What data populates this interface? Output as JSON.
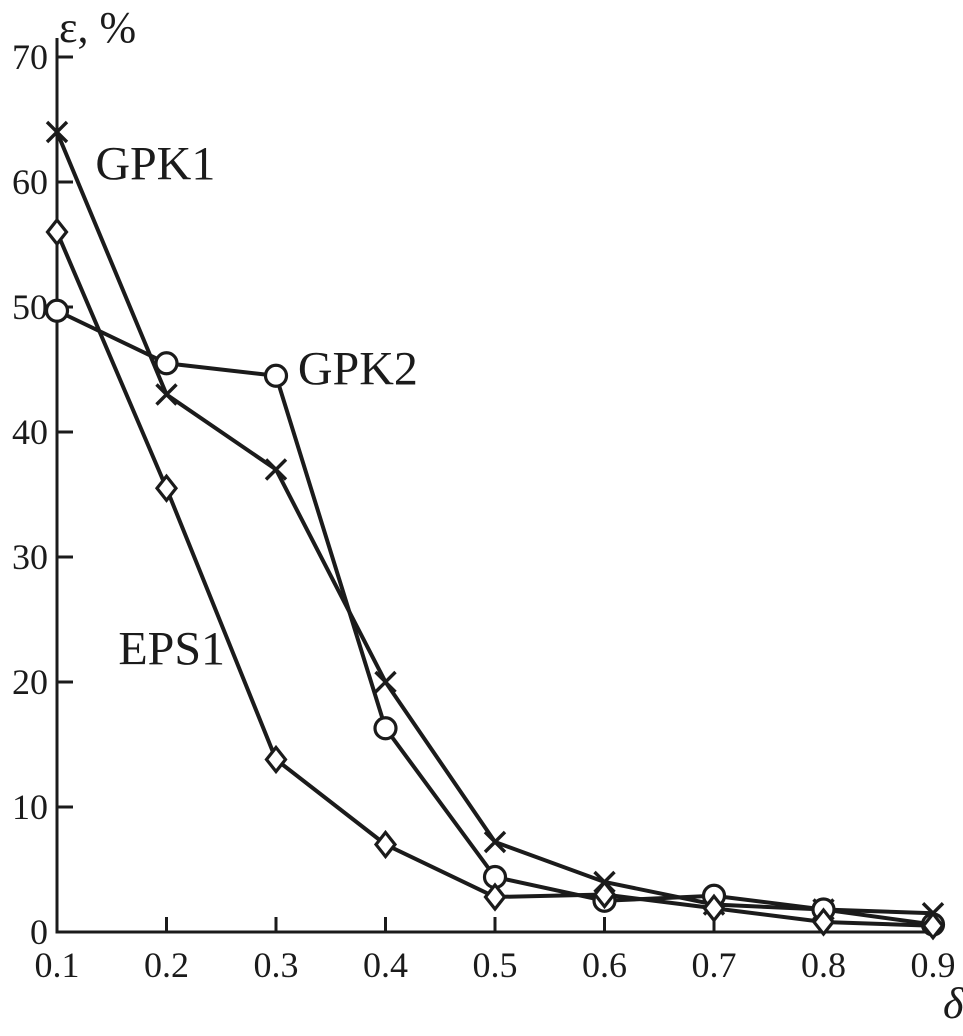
{
  "chart_data": {
    "type": "line",
    "title": "",
    "ylabel": "ε, %",
    "xlabel": "δ",
    "x": [
      0.1,
      0.2,
      0.3,
      0.4,
      0.5,
      0.6,
      0.7,
      0.8,
      0.9
    ],
    "xlim": [
      0.1,
      0.9
    ],
    "ylim": [
      0,
      70
    ],
    "y_ticks": [
      0,
      10,
      20,
      30,
      40,
      50,
      60,
      70
    ],
    "x_tick_labels": [
      "0.1",
      "0.2",
      "0.3",
      "0.4",
      "0.5",
      "0.6",
      "0.7",
      "0.8",
      "0.9"
    ],
    "grid": false,
    "legend_position": "inline-annotations",
    "line_color": "#1b1b1b",
    "background_color": "#ffffff",
    "series": [
      {
        "name": "GPK1",
        "marker": "x",
        "values": [
          64.0,
          43.0,
          37.0,
          20.0,
          7.2,
          4.0,
          2.2,
          1.8,
          1.5
        ]
      },
      {
        "name": "GPK2",
        "marker": "circle",
        "values": [
          49.7,
          45.5,
          44.5,
          16.3,
          4.4,
          2.5,
          2.9,
          1.8,
          0.6
        ]
      },
      {
        "name": "EPS1",
        "marker": "diamond",
        "values": [
          56.0,
          35.5,
          13.8,
          7.0,
          2.8,
          3.0,
          1.9,
          0.8,
          0.5
        ]
      }
    ],
    "annotations": [
      {
        "text": "GPK1",
        "x": 0.135,
        "y": 60.2
      },
      {
        "text": "GPK2",
        "x": 0.32,
        "y": 43.8
      },
      {
        "text": "EPS1",
        "x": 0.156,
        "y": 21.4
      }
    ]
  }
}
